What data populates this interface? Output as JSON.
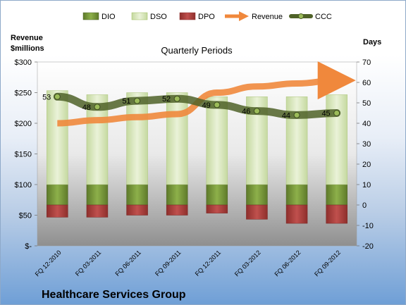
{
  "chart_data": {
    "type": "bar",
    "title": "Quarterly Periods",
    "footer_title": "Healthcare Services Group",
    "y_left_label_line1": "Revenue",
    "y_left_label_line2": "$millions",
    "y_right_label": "Days",
    "y_left_ticks": [
      "$-",
      "$50",
      "$100",
      "$150",
      "$200",
      "$250",
      "$300"
    ],
    "y_right_ticks": [
      "-20",
      "-10",
      "0",
      "10",
      "20",
      "30",
      "40",
      "50",
      "60",
      "70"
    ],
    "y_left_range": [
      0,
      300
    ],
    "y_right_range": [
      -20,
      70
    ],
    "categories": [
      "FQ 12-2010",
      "FQ 03-2011",
      "FQ 06-2011",
      "FQ 09-2011",
      "FQ 12-2011",
      "FQ 03-2012",
      "FQ 06-2012",
      "FQ 09-2012"
    ],
    "legend": [
      "DIO",
      "DSO",
      "DPO",
      "Revenue",
      "CCC"
    ],
    "series": [
      {
        "name": "DIO",
        "axis": "right",
        "color": "#77933c",
        "values": [
          10,
          10,
          10,
          10,
          10,
          10,
          10,
          10
        ]
      },
      {
        "name": "DSO",
        "axis": "right",
        "color": "#d7e4bd",
        "values": [
          46,
          44,
          45,
          45,
          43,
          43,
          43,
          44
        ]
      },
      {
        "name": "DPO",
        "axis": "right",
        "color": "#c0504d",
        "values": [
          -6,
          -6,
          -5,
          -5,
          -4,
          -7,
          -9,
          -9
        ]
      },
      {
        "name": "Revenue",
        "axis": "left",
        "color": "#f79646",
        "values": [
          200,
          205,
          210,
          215,
          250,
          260,
          265,
          270
        ]
      },
      {
        "name": "CCC",
        "axis": "right",
        "color": "#5b7f2c",
        "values": [
          53,
          48,
          51,
          52,
          49,
          46,
          44,
          45
        ]
      }
    ],
    "ccc_labels": [
      "53",
      "48",
      "51",
      "52",
      "49",
      "46",
      "44",
      "45"
    ]
  }
}
